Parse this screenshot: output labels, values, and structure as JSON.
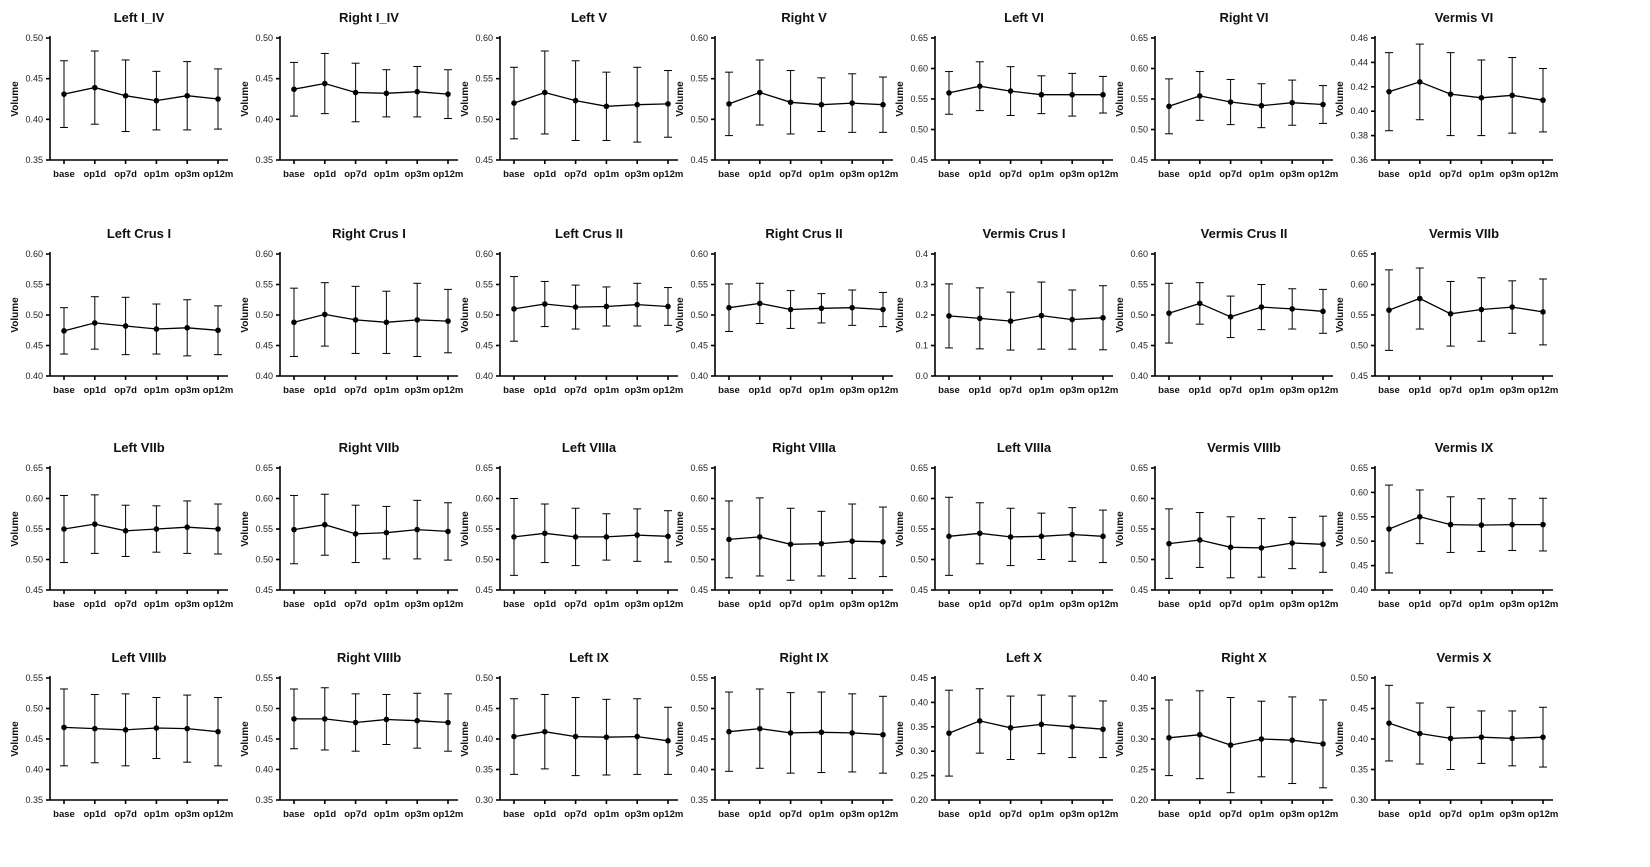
{
  "figure": {
    "ylabel": "Volume",
    "categories": [
      "base",
      "op1d",
      "op7d",
      "op1m",
      "op3m",
      "op12m"
    ]
  },
  "chart_data": [
    {
      "type": "line",
      "title": "Left I_IV",
      "xlabel": "",
      "ylabel": "Volume",
      "ylim": [
        0.35,
        0.5
      ],
      "yticks": [
        "0.35",
        "0.40",
        "0.45",
        "0.50"
      ],
      "categories": [
        "base",
        "op1d",
        "op7d",
        "op1m",
        "op3m",
        "op12m"
      ],
      "values": [
        0.431,
        0.439,
        0.429,
        0.423,
        0.429,
        0.425
      ],
      "errors": [
        0.041,
        0.045,
        0.044,
        0.036,
        0.042,
        0.037
      ]
    },
    {
      "type": "line",
      "title": "Right I_IV",
      "xlabel": "",
      "ylabel": "Volume",
      "ylim": [
        0.35,
        0.5
      ],
      "yticks": [
        "0.35",
        "0.40",
        "0.45",
        "0.50"
      ],
      "categories": [
        "base",
        "op1d",
        "op7d",
        "op1m",
        "op3m",
        "op12m"
      ],
      "values": [
        0.437,
        0.444,
        0.433,
        0.432,
        0.434,
        0.431
      ],
      "errors": [
        0.033,
        0.037,
        0.036,
        0.029,
        0.031,
        0.03
      ]
    },
    {
      "type": "line",
      "title": "Left V",
      "xlabel": "",
      "ylabel": "Volume",
      "ylim": [
        0.45,
        0.6
      ],
      "yticks": [
        "0.45",
        "0.50",
        "0.55",
        "0.60"
      ],
      "categories": [
        "base",
        "op1d",
        "op7d",
        "op1m",
        "op3m",
        "op12m"
      ],
      "values": [
        0.52,
        0.533,
        0.523,
        0.516,
        0.518,
        0.519
      ],
      "errors": [
        0.044,
        0.051,
        0.049,
        0.042,
        0.046,
        0.041
      ]
    },
    {
      "type": "line",
      "title": "Right V",
      "xlabel": "",
      "ylabel": "Volume",
      "ylim": [
        0.45,
        0.6
      ],
      "yticks": [
        "0.45",
        "0.50",
        "0.55",
        "0.60"
      ],
      "categories": [
        "base",
        "op1d",
        "op7d",
        "op1m",
        "op3m",
        "op12m"
      ],
      "values": [
        0.519,
        0.533,
        0.521,
        0.518,
        0.52,
        0.518
      ],
      "errors": [
        0.039,
        0.04,
        0.039,
        0.033,
        0.036,
        0.034
      ]
    },
    {
      "type": "line",
      "title": "Left VI",
      "xlabel": "",
      "ylabel": "Volume",
      "ylim": [
        0.45,
        0.65
      ],
      "yticks": [
        "0.45",
        "0.50",
        "0.55",
        "0.60",
        "0.65"
      ],
      "categories": [
        "base",
        "op1d",
        "op7d",
        "op1m",
        "op3m",
        "op12m"
      ],
      "values": [
        0.56,
        0.571,
        0.563,
        0.557,
        0.557,
        0.557
      ],
      "errors": [
        0.035,
        0.04,
        0.04,
        0.031,
        0.035,
        0.03
      ]
    },
    {
      "type": "line",
      "title": "Right VI",
      "xlabel": "",
      "ylabel": "Volume",
      "ylim": [
        0.45,
        0.65
      ],
      "yticks": [
        "0.45",
        "0.50",
        "0.55",
        "0.60",
        "0.65"
      ],
      "categories": [
        "base",
        "op1d",
        "op7d",
        "op1m",
        "op3m",
        "op12m"
      ],
      "values": [
        0.538,
        0.555,
        0.545,
        0.539,
        0.544,
        0.541
      ],
      "errors": [
        0.045,
        0.04,
        0.037,
        0.036,
        0.037,
        0.031
      ]
    },
    {
      "type": "line",
      "title": "Vermis VI",
      "xlabel": "",
      "ylabel": "Volume",
      "ylim": [
        0.36,
        0.46
      ],
      "yticks": [
        "0.36",
        "0.38",
        "0.40",
        "0.42",
        "0.44",
        "0.46"
      ],
      "categories": [
        "base",
        "op1d",
        "op7d",
        "op1m",
        "op3m",
        "op12m"
      ],
      "values": [
        0.416,
        0.424,
        0.414,
        0.411,
        0.413,
        0.409
      ],
      "errors": [
        0.032,
        0.031,
        0.034,
        0.031,
        0.031,
        0.026
      ]
    },
    {
      "type": "line",
      "title": "Left Crus I",
      "xlabel": "",
      "ylabel": "Volume",
      "ylim": [
        0.4,
        0.6
      ],
      "yticks": [
        "0.40",
        "0.45",
        "0.50",
        "0.55",
        "0.60"
      ],
      "categories": [
        "base",
        "op1d",
        "op7d",
        "op1m",
        "op3m",
        "op12m"
      ],
      "values": [
        0.474,
        0.487,
        0.482,
        0.477,
        0.479,
        0.475
      ],
      "errors": [
        0.038,
        0.043,
        0.047,
        0.041,
        0.046,
        0.04
      ]
    },
    {
      "type": "line",
      "title": "Right Crus I",
      "xlabel": "",
      "ylabel": "Volume",
      "ylim": [
        0.4,
        0.6
      ],
      "yticks": [
        "0.40",
        "0.45",
        "0.50",
        "0.55",
        "0.60"
      ],
      "categories": [
        "base",
        "op1d",
        "op7d",
        "op1m",
        "op3m",
        "op12m"
      ],
      "values": [
        0.488,
        0.501,
        0.492,
        0.488,
        0.492,
        0.49
      ],
      "errors": [
        0.056,
        0.052,
        0.055,
        0.051,
        0.06,
        0.052
      ]
    },
    {
      "type": "line",
      "title": "Left Crus II",
      "xlabel": "",
      "ylabel": "Volume",
      "ylim": [
        0.4,
        0.6
      ],
      "yticks": [
        "0.40",
        "0.45",
        "0.50",
        "0.55",
        "0.60"
      ],
      "categories": [
        "base",
        "op1d",
        "op7d",
        "op1m",
        "op3m",
        "op12m"
      ],
      "values": [
        0.51,
        0.518,
        0.513,
        0.514,
        0.517,
        0.514
      ],
      "errors": [
        0.053,
        0.037,
        0.036,
        0.032,
        0.035,
        0.031
      ]
    },
    {
      "type": "line",
      "title": "Right Crus II",
      "xlabel": "",
      "ylabel": "Volume",
      "ylim": [
        0.4,
        0.6
      ],
      "yticks": [
        "0.40",
        "0.45",
        "0.50",
        "0.55",
        "0.60"
      ],
      "categories": [
        "base",
        "op1d",
        "op7d",
        "op1m",
        "op3m",
        "op12m"
      ],
      "values": [
        0.512,
        0.519,
        0.509,
        0.511,
        0.512,
        0.509
      ],
      "errors": [
        0.039,
        0.033,
        0.031,
        0.024,
        0.029,
        0.028
      ]
    },
    {
      "type": "line",
      "title": "Vermis Crus I",
      "xlabel": "",
      "ylabel": "Volume",
      "ylim": [
        0.0,
        0.4
      ],
      "yticks": [
        "0.0",
        "0.1",
        "0.2",
        "0.3",
        "0.4"
      ],
      "categories": [
        "base",
        "op1d",
        "op7d",
        "op1m",
        "op3m",
        "op12m"
      ],
      "values": [
        0.197,
        0.189,
        0.18,
        0.198,
        0.185,
        0.191
      ],
      "errors": [
        0.105,
        0.1,
        0.095,
        0.11,
        0.097,
        0.105
      ]
    },
    {
      "type": "line",
      "title": "Vermis Crus II",
      "xlabel": "",
      "ylabel": "Volume",
      "ylim": [
        0.4,
        0.6
      ],
      "yticks": [
        "0.40",
        "0.45",
        "0.50",
        "0.55",
        "0.60"
      ],
      "categories": [
        "base",
        "op1d",
        "op7d",
        "op1m",
        "op3m",
        "op12m"
      ],
      "values": [
        0.503,
        0.519,
        0.497,
        0.513,
        0.51,
        0.506
      ],
      "errors": [
        0.049,
        0.034,
        0.034,
        0.037,
        0.033,
        0.036
      ]
    },
    {
      "type": "line",
      "title": "Vermis VIIb",
      "xlabel": "",
      "ylabel": "Volume",
      "ylim": [
        0.45,
        0.65
      ],
      "yticks": [
        "0.45",
        "0.50",
        "0.55",
        "0.60",
        "0.65"
      ],
      "categories": [
        "base",
        "op1d",
        "op7d",
        "op1m",
        "op3m",
        "op12m"
      ],
      "values": [
        0.558,
        0.577,
        0.552,
        0.559,
        0.563,
        0.555
      ],
      "errors": [
        0.066,
        0.05,
        0.053,
        0.052,
        0.043,
        0.054
      ]
    },
    {
      "type": "line",
      "title": "Left VIIb",
      "xlabel": "",
      "ylabel": "Volume",
      "ylim": [
        0.45,
        0.65
      ],
      "yticks": [
        "0.45",
        "0.50",
        "0.55",
        "0.60",
        "0.65"
      ],
      "categories": [
        "base",
        "op1d",
        "op7d",
        "op1m",
        "op3m",
        "op12m"
      ],
      "values": [
        0.55,
        0.558,
        0.547,
        0.55,
        0.553,
        0.55
      ],
      "errors": [
        0.055,
        0.048,
        0.042,
        0.038,
        0.043,
        0.041
      ]
    },
    {
      "type": "line",
      "title": "Right VIIb",
      "xlabel": "",
      "ylabel": "Volume",
      "ylim": [
        0.45,
        0.65
      ],
      "yticks": [
        "0.45",
        "0.50",
        "0.55",
        "0.60",
        "0.65"
      ],
      "categories": [
        "base",
        "op1d",
        "op7d",
        "op1m",
        "op3m",
        "op12m"
      ],
      "values": [
        0.549,
        0.557,
        0.542,
        0.544,
        0.549,
        0.546
      ],
      "errors": [
        0.056,
        0.05,
        0.047,
        0.043,
        0.048,
        0.047
      ]
    },
    {
      "type": "line",
      "title": "Left VIIIa",
      "xlabel": "",
      "ylabel": "Volume",
      "ylim": [
        0.45,
        0.65
      ],
      "yticks": [
        "0.45",
        "0.50",
        "0.55",
        "0.60",
        "0.65"
      ],
      "categories": [
        "base",
        "op1d",
        "op7d",
        "op1m",
        "op3m",
        "op12m"
      ],
      "values": [
        0.537,
        0.543,
        0.537,
        0.537,
        0.54,
        0.538
      ],
      "errors": [
        0.063,
        0.048,
        0.047,
        0.038,
        0.043,
        0.042
      ]
    },
    {
      "type": "line",
      "title": "Right VIIIa",
      "xlabel": "",
      "ylabel": "Volume",
      "ylim": [
        0.45,
        0.65
      ],
      "yticks": [
        "0.45",
        "0.50",
        "0.55",
        "0.60",
        "0.65"
      ],
      "categories": [
        "base",
        "op1d",
        "op7d",
        "op1m",
        "op3m",
        "op12m"
      ],
      "values": [
        0.533,
        0.537,
        0.525,
        0.526,
        0.53,
        0.529
      ],
      "errors": [
        0.063,
        0.064,
        0.059,
        0.053,
        0.061,
        0.057
      ]
    },
    {
      "type": "line",
      "title": "Left VIIIa",
      "xlabel": "",
      "ylabel": "Volume",
      "ylim": [
        0.45,
        0.65
      ],
      "yticks": [
        "0.45",
        "0.50",
        "0.55",
        "0.60",
        "0.65"
      ],
      "categories": [
        "base",
        "op1d",
        "op7d",
        "op1m",
        "op3m",
        "op12m"
      ],
      "values": [
        0.538,
        0.543,
        0.537,
        0.538,
        0.541,
        0.538
      ],
      "errors": [
        0.064,
        0.05,
        0.047,
        0.038,
        0.044,
        0.043
      ]
    },
    {
      "type": "line",
      "title": "Vermis VIIIb",
      "xlabel": "",
      "ylabel": "Volume",
      "ylim": [
        0.45,
        0.65
      ],
      "yticks": [
        "0.45",
        "0.50",
        "0.55",
        "0.60",
        "0.65"
      ],
      "categories": [
        "base",
        "op1d",
        "op7d",
        "op1m",
        "op3m",
        "op12m"
      ],
      "values": [
        0.526,
        0.532,
        0.52,
        0.519,
        0.527,
        0.525
      ],
      "errors": [
        0.057,
        0.045,
        0.05,
        0.048,
        0.042,
        0.046
      ]
    },
    {
      "type": "line",
      "title": "Vermis IX",
      "xlabel": "",
      "ylabel": "Volume",
      "ylim": [
        0.4,
        0.65
      ],
      "yticks": [
        "0.40",
        "0.45",
        "0.50",
        "0.55",
        "0.60",
        "0.65"
      ],
      "categories": [
        "base",
        "op1d",
        "op7d",
        "op1m",
        "op3m",
        "op12m"
      ],
      "values": [
        0.525,
        0.55,
        0.534,
        0.533,
        0.534,
        0.534
      ],
      "errors": [
        0.09,
        0.055,
        0.057,
        0.054,
        0.053,
        0.054
      ]
    },
    {
      "type": "line",
      "title": "Left VIIIb",
      "xlabel": "",
      "ylabel": "Volume",
      "ylim": [
        0.35,
        0.55
      ],
      "yticks": [
        "0.35",
        "0.40",
        "0.45",
        "0.50",
        "0.55"
      ],
      "categories": [
        "base",
        "op1d",
        "op7d",
        "op1m",
        "op3m",
        "op12m"
      ],
      "values": [
        0.469,
        0.467,
        0.465,
        0.468,
        0.467,
        0.462
      ],
      "errors": [
        0.063,
        0.056,
        0.059,
        0.05,
        0.055,
        0.056
      ]
    },
    {
      "type": "line",
      "title": "Right VIIIb",
      "xlabel": "",
      "ylabel": "Volume",
      "ylim": [
        0.35,
        0.55
      ],
      "yticks": [
        "0.35",
        "0.40",
        "0.45",
        "0.50",
        "0.55"
      ],
      "categories": [
        "base",
        "op1d",
        "op7d",
        "op1m",
        "op3m",
        "op12m"
      ],
      "values": [
        0.483,
        0.483,
        0.477,
        0.482,
        0.48,
        0.477
      ],
      "errors": [
        0.049,
        0.051,
        0.047,
        0.041,
        0.045,
        0.047
      ]
    },
    {
      "type": "line",
      "title": "Left IX",
      "xlabel": "",
      "ylabel": "Volume",
      "ylim": [
        0.3,
        0.5
      ],
      "yticks": [
        "0.30",
        "0.35",
        "0.40",
        "0.45",
        "0.50"
      ],
      "categories": [
        "base",
        "op1d",
        "op7d",
        "op1m",
        "op3m",
        "op12m"
      ],
      "values": [
        0.404,
        0.412,
        0.404,
        0.403,
        0.404,
        0.397
      ],
      "errors": [
        0.062,
        0.061,
        0.064,
        0.062,
        0.062,
        0.055
      ]
    },
    {
      "type": "line",
      "title": "Right IX",
      "xlabel": "",
      "ylabel": "Volume",
      "ylim": [
        0.35,
        0.55
      ],
      "yticks": [
        "0.35",
        "0.40",
        "0.45",
        "0.50",
        "0.55"
      ],
      "categories": [
        "base",
        "op1d",
        "op7d",
        "op1m",
        "op3m",
        "op12m"
      ],
      "values": [
        0.462,
        0.467,
        0.46,
        0.461,
        0.46,
        0.457
      ],
      "errors": [
        0.065,
        0.065,
        0.066,
        0.066,
        0.064,
        0.063
      ]
    },
    {
      "type": "line",
      "title": "Left X",
      "xlabel": "",
      "ylabel": "Volume",
      "ylim": [
        0.2,
        0.45
      ],
      "yticks": [
        "0.20",
        "0.25",
        "0.30",
        "0.35",
        "0.40",
        "0.45"
      ],
      "categories": [
        "base",
        "op1d",
        "op7d",
        "op1m",
        "op3m",
        "op12m"
      ],
      "values": [
        0.337,
        0.362,
        0.348,
        0.355,
        0.35,
        0.345
      ],
      "errors": [
        0.088,
        0.066,
        0.065,
        0.06,
        0.063,
        0.058
      ]
    },
    {
      "type": "line",
      "title": "Right X",
      "xlabel": "",
      "ylabel": "Volume",
      "ylim": [
        0.2,
        0.4
      ],
      "yticks": [
        "0.20",
        "0.25",
        "0.30",
        "0.35",
        "0.40"
      ],
      "categories": [
        "base",
        "op1d",
        "op7d",
        "op1m",
        "op3m",
        "op12m"
      ],
      "values": [
        0.302,
        0.307,
        0.29,
        0.3,
        0.298,
        0.292
      ],
      "errors": [
        0.062,
        0.072,
        0.078,
        0.062,
        0.071,
        0.072
      ]
    },
    {
      "type": "line",
      "title": "Vermis X",
      "xlabel": "",
      "ylabel": "Volume",
      "ylim": [
        0.3,
        0.5
      ],
      "yticks": [
        "0.30",
        "0.35",
        "0.40",
        "0.45",
        "0.50"
      ],
      "categories": [
        "base",
        "op1d",
        "op7d",
        "op1m",
        "op3m",
        "op12m"
      ],
      "values": [
        0.426,
        0.409,
        0.401,
        0.403,
        0.401,
        0.403
      ],
      "errors": [
        0.062,
        0.05,
        0.051,
        0.043,
        0.045,
        0.049
      ]
    }
  ]
}
